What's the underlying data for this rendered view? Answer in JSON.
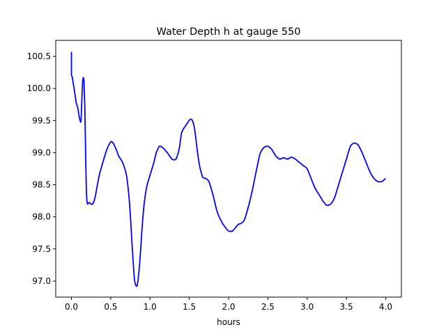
{
  "chart_data": {
    "type": "line",
    "title": "Water Depth h at gauge 550",
    "xlabel": "hours",
    "ylabel": "",
    "xlim": [
      -0.2,
      4.2
    ],
    "ylim": [
      96.75,
      100.75
    ],
    "grid": false,
    "x_ticks": [
      0.0,
      0.5,
      1.0,
      1.5,
      2.0,
      2.5,
      3.0,
      3.5,
      4.0
    ],
    "x_tick_labels": [
      "0.0",
      "0.5",
      "1.0",
      "1.5",
      "2.0",
      "2.5",
      "3.0",
      "3.5",
      "4.0"
    ],
    "y_ticks": [
      97.0,
      97.5,
      98.0,
      98.5,
      99.0,
      99.5,
      100.0,
      100.5
    ],
    "y_tick_labels": [
      "97.0",
      "97.5",
      "98.0",
      "98.5",
      "99.0",
      "99.5",
      "100.0",
      "100.5"
    ],
    "series": [
      {
        "color": "#0000ff",
        "x": [
          0.0,
          0.0,
          0.01,
          0.02,
          0.04,
          0.06,
          0.08,
          0.1,
          0.12,
          0.13,
          0.14,
          0.15,
          0.16,
          0.17,
          0.18,
          0.19,
          0.2,
          0.21,
          0.22,
          0.23,
          0.25,
          0.27,
          0.3,
          0.33,
          0.36,
          0.4,
          0.45,
          0.5,
          0.53,
          0.57,
          0.6,
          0.65,
          0.7,
          0.74,
          0.77,
          0.8,
          0.82,
          0.84,
          0.87,
          0.9,
          0.93,
          0.96,
          1.0,
          1.05,
          1.08,
          1.12,
          1.16,
          1.22,
          1.28,
          1.33,
          1.37,
          1.4,
          1.43,
          1.47,
          1.51,
          1.54,
          1.57,
          1.6,
          1.63,
          1.67,
          1.71,
          1.75,
          1.8,
          1.85,
          1.9,
          1.95,
          2.0,
          2.05,
          2.08,
          2.12,
          2.16,
          2.2,
          2.25,
          2.3,
          2.35,
          2.4,
          2.45,
          2.5,
          2.55,
          2.6,
          2.65,
          2.7,
          2.75,
          2.8,
          2.85,
          2.9,
          2.95,
          3.0,
          3.05,
          3.1,
          3.15,
          3.2,
          3.25,
          3.3,
          3.35,
          3.4,
          3.45,
          3.5,
          3.55,
          3.6,
          3.65,
          3.7,
          3.75,
          3.8,
          3.85,
          3.9,
          3.95,
          4.0
        ],
        "y": [
          100.57,
          100.22,
          100.18,
          100.1,
          99.95,
          99.78,
          99.7,
          99.55,
          99.48,
          99.75,
          100.05,
          100.17,
          100.1,
          99.7,
          99.0,
          98.4,
          98.22,
          98.2,
          98.22,
          98.22,
          98.2,
          98.2,
          98.3,
          98.5,
          98.68,
          98.85,
          99.05,
          99.17,
          99.15,
          99.05,
          98.95,
          98.85,
          98.65,
          98.2,
          97.6,
          97.05,
          96.93,
          96.95,
          97.3,
          97.85,
          98.25,
          98.48,
          98.65,
          98.85,
          99.0,
          99.1,
          99.08,
          99.0,
          98.9,
          98.9,
          99.05,
          99.3,
          99.38,
          99.45,
          99.52,
          99.5,
          99.35,
          99.05,
          98.8,
          98.62,
          98.6,
          98.55,
          98.35,
          98.1,
          97.95,
          97.85,
          97.78,
          97.78,
          97.82,
          97.88,
          97.9,
          97.95,
          98.15,
          98.4,
          98.7,
          98.98,
          99.08,
          99.1,
          99.05,
          98.95,
          98.9,
          98.92,
          98.9,
          98.93,
          98.9,
          98.85,
          98.8,
          98.75,
          98.6,
          98.45,
          98.35,
          98.25,
          98.18,
          98.2,
          98.3,
          98.5,
          98.7,
          98.9,
          99.1,
          99.15,
          99.12,
          99.0,
          98.85,
          98.7,
          98.6,
          98.55,
          98.55,
          98.6
        ]
      }
    ]
  }
}
